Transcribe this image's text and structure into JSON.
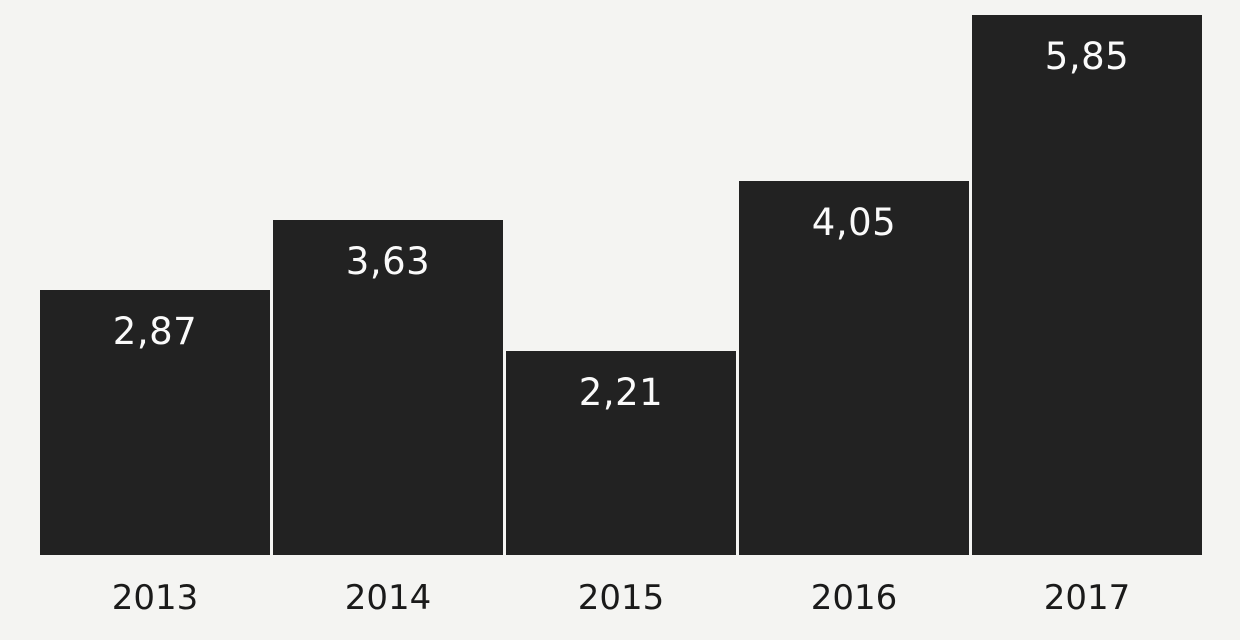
{
  "chart_data": {
    "type": "bar",
    "title": "",
    "xlabel": "",
    "ylabel": "",
    "categories": [
      "2013",
      "2014",
      "2015",
      "2016",
      "2017"
    ],
    "values": [
      2.87,
      3.63,
      2.21,
      4.05,
      5.85
    ],
    "value_labels": [
      "2,87",
      "3,63",
      "2,21",
      "4,05",
      "5,85"
    ],
    "decimal_separator": ",",
    "value_label_position": "inside-top",
    "ylim": [
      0,
      6
    ],
    "grid": false,
    "legend": false,
    "axes_visible": false
  },
  "style": {
    "background_color": "#f4f4f2",
    "bar_color": "#222222",
    "value_label_color": "#fafafa",
    "tick_label_color": "#1a1a1a"
  }
}
